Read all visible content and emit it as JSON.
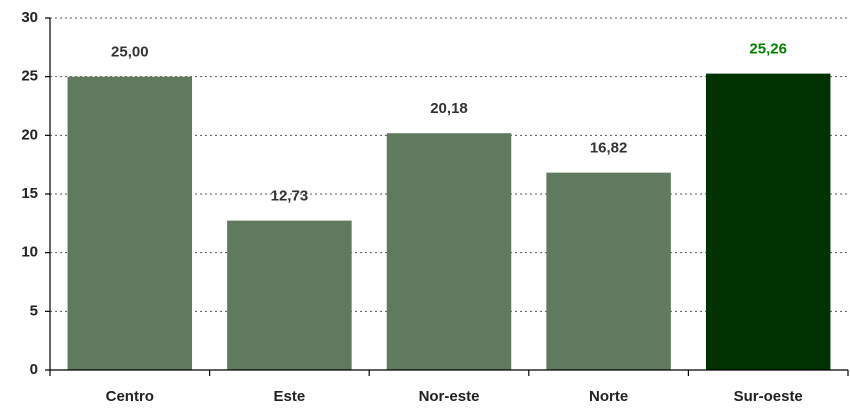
{
  "chart_data": {
    "type": "bar",
    "categories": [
      "Centro",
      "Este",
      "Nor-este",
      "Norte",
      "Sur-oeste"
    ],
    "values": [
      25.0,
      12.73,
      20.18,
      16.82,
      25.26
    ],
    "value_labels": [
      "25,00",
      "12,73",
      "20,18",
      "16,82",
      "25,26"
    ],
    "colors": [
      "#5f7a5f",
      "#5f7a5f",
      "#5f7a5f",
      "#5f7a5f",
      "#003300"
    ],
    "value_label_colors": [
      "#333333",
      "#333333",
      "#333333",
      "#333333",
      "#008000"
    ],
    "ylim": [
      0,
      30
    ],
    "yticks": [
      0,
      5,
      10,
      15,
      20,
      25,
      30
    ],
    "grid": true
  }
}
